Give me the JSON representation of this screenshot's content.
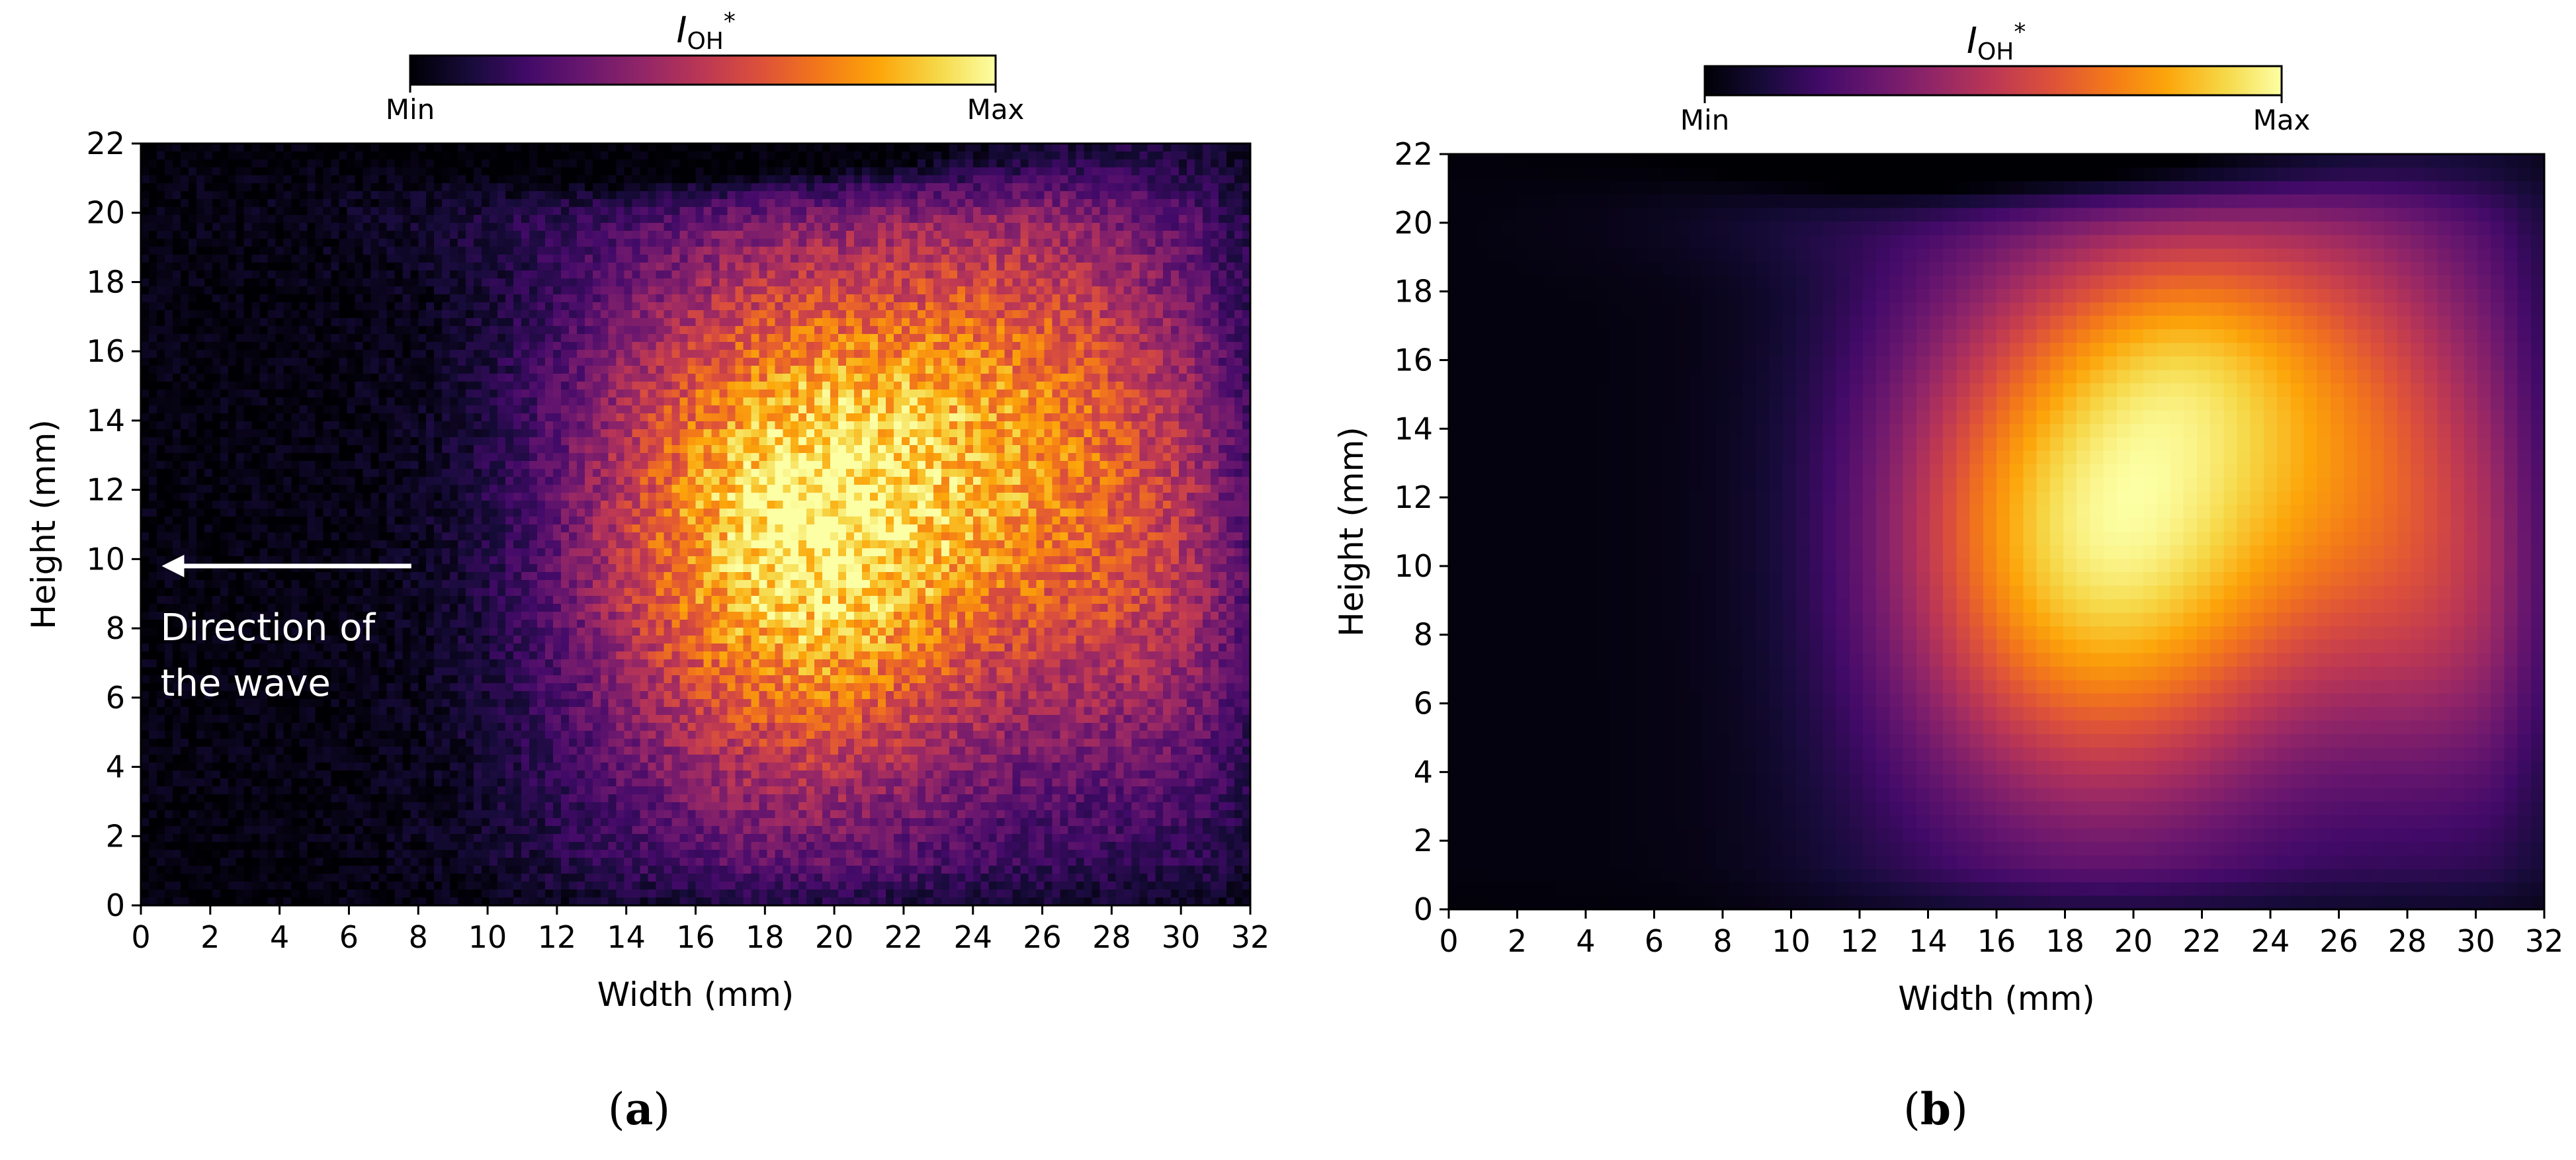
{
  "chart_data": [
    {
      "type": "heatmap",
      "panel_label": "a",
      "style": "noisy",
      "colormap": "inferno",
      "colorbar": {
        "title_main": "I",
        "title_sub": "OH",
        "title_sup": "*",
        "min_label": "Min",
        "max_label": "Max"
      },
      "xlabel": "Width (mm)",
      "ylabel": "Height (mm)",
      "xlim": [
        0,
        32
      ],
      "ylim": [
        0,
        22
      ],
      "xticks": [
        "0",
        "2",
        "4",
        "6",
        "8",
        "10",
        "12",
        "14",
        "16",
        "18",
        "20",
        "22",
        "24",
        "26",
        "28",
        "30",
        "32"
      ],
      "yticks": [
        "0",
        "2",
        "4",
        "6",
        "8",
        "10",
        "12",
        "14",
        "16",
        "18",
        "20",
        "22"
      ],
      "annotation": {
        "lines": [
          "Direction of",
          "the wave"
        ],
        "arrow_from": [
          7.8,
          9.8
        ],
        "arrow_to": [
          0.6,
          9.8
        ]
      }
    },
    {
      "type": "heatmap",
      "panel_label": "b",
      "style": "smooth",
      "colormap": "inferno",
      "colorbar": {
        "title_main": "I",
        "title_sub": "OH",
        "title_sup": "*",
        "min_label": "Min",
        "max_label": "Max"
      },
      "xlabel": "Width (mm)",
      "ylabel": "Height (mm)",
      "xlim": [
        0,
        32
      ],
      "ylim": [
        0,
        22
      ],
      "xticks": [
        "0",
        "2",
        "4",
        "6",
        "8",
        "10",
        "12",
        "14",
        "16",
        "18",
        "20",
        "22",
        "24",
        "26",
        "28",
        "30",
        "32"
      ],
      "yticks": [
        "0",
        "2",
        "4",
        "6",
        "8",
        "10",
        "12",
        "14",
        "16",
        "18",
        "20",
        "22"
      ]
    }
  ]
}
